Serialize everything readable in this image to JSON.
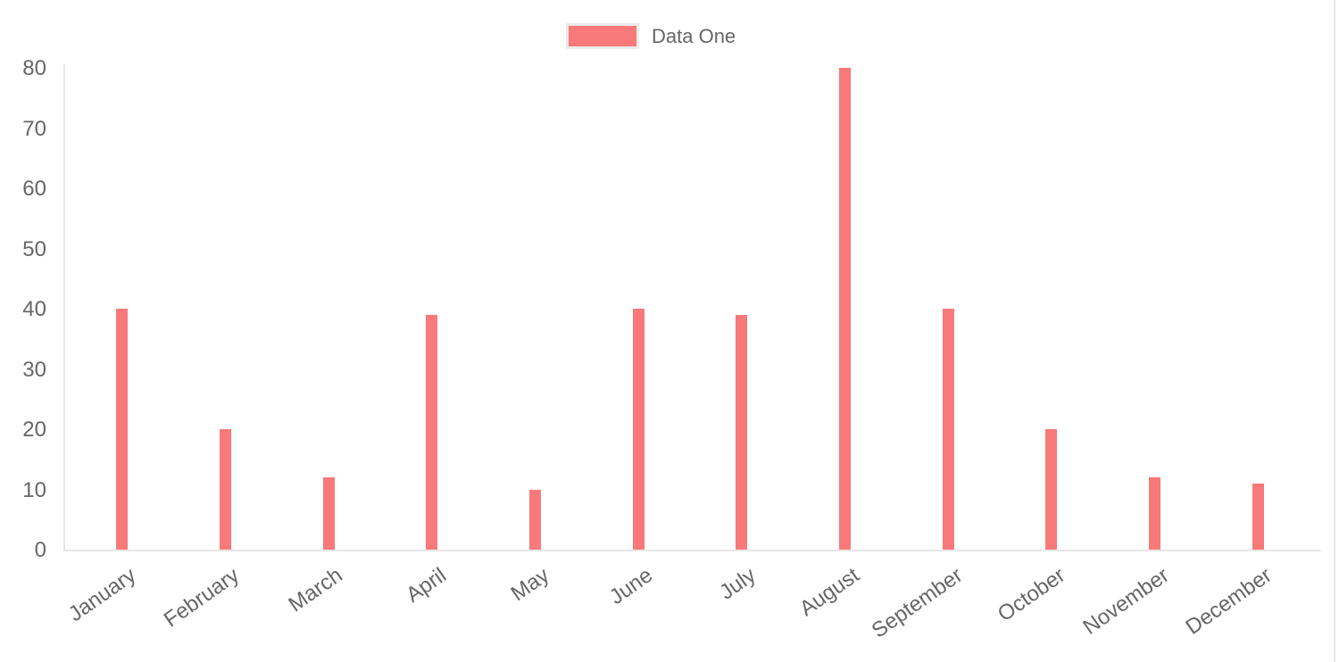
{
  "legend": {
    "label": "Data One",
    "swatch_color": "#f87979",
    "swatch_border_color": "#ebebeb",
    "text_color": "#666666"
  },
  "chart_data": {
    "type": "bar",
    "title": "",
    "xlabel": "",
    "ylabel": "",
    "categories": [
      "January",
      "February",
      "March",
      "April",
      "May",
      "June",
      "July",
      "August",
      "September",
      "October",
      "November",
      "December"
    ],
    "series": [
      {
        "name": "Data One",
        "color": "#f87979",
        "values": [
          40,
          20,
          12,
          39,
          10,
          40,
          39,
          80,
          40,
          20,
          12,
          11
        ]
      }
    ],
    "ylim": [
      0,
      80
    ],
    "yticks": [
      0,
      10,
      20,
      30,
      40,
      50,
      60,
      70,
      80
    ],
    "grid": false,
    "legend_position": "top-center",
    "x_tick_rotation_deg": -35,
    "colors": {
      "tick_label": "#666666",
      "axis_line": "#e6e6e6"
    }
  },
  "page": {
    "right_divider_color": "#e7e7e7"
  }
}
